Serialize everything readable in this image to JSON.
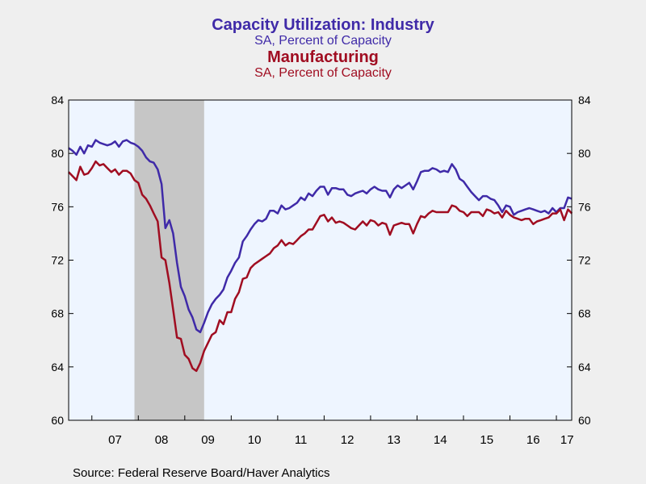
{
  "titles": {
    "line1": "Capacity Utilization: Industry",
    "line2": "SA, Percent of Capacity",
    "line3": "Manufacturing",
    "line4": "SA, Percent of Capacity"
  },
  "source": "Source:  Federal Reserve Board/Haver Analytics",
  "chart_data": {
    "type": "line",
    "title": "",
    "xlabel": "",
    "ylabel": "",
    "ylim": [
      60,
      84
    ],
    "yticks": [
      60,
      64,
      68,
      72,
      76,
      80,
      84
    ],
    "xlim": [
      2006.5,
      2017.33
    ],
    "xtick_labels": [
      "07",
      "08",
      "09",
      "10",
      "11",
      "12",
      "13",
      "14",
      "15",
      "16",
      "17"
    ],
    "xtick_centers": [
      2007.5,
      2008.5,
      2009.5,
      2010.5,
      2011.5,
      2012.5,
      2013.5,
      2014.5,
      2015.5,
      2016.5,
      2017.5
    ],
    "recession": [
      2007.917,
      2009.417
    ],
    "grid": false,
    "colors": {
      "industry": "#3f2aa8",
      "manufacturing": "#a00d21",
      "recession": "#c6c6c6",
      "plot_bg": "#eef5ff"
    },
    "series": [
      {
        "name": "Capacity Utilization: Industry",
        "key": "industry",
        "points": [
          [
            2006.5,
            80.4
          ],
          [
            2006.583,
            80.2
          ],
          [
            2006.667,
            79.9
          ],
          [
            2006.75,
            80.5
          ],
          [
            2006.833,
            80.0
          ],
          [
            2006.917,
            80.6
          ],
          [
            2007.0,
            80.5
          ],
          [
            2007.083,
            81.0
          ],
          [
            2007.167,
            80.8
          ],
          [
            2007.25,
            80.7
          ],
          [
            2007.333,
            80.6
          ],
          [
            2007.417,
            80.7
          ],
          [
            2007.5,
            80.9
          ],
          [
            2007.583,
            80.5
          ],
          [
            2007.667,
            80.9
          ],
          [
            2007.75,
            81.0
          ],
          [
            2007.833,
            80.8
          ],
          [
            2007.917,
            80.7
          ],
          [
            2008.0,
            80.5
          ],
          [
            2008.083,
            80.2
          ],
          [
            2008.167,
            79.7
          ],
          [
            2008.25,
            79.4
          ],
          [
            2008.333,
            79.3
          ],
          [
            2008.417,
            78.8
          ],
          [
            2008.5,
            77.7
          ],
          [
            2008.583,
            74.4
          ],
          [
            2008.667,
            75.0
          ],
          [
            2008.75,
            74.0
          ],
          [
            2008.833,
            71.8
          ],
          [
            2008.917,
            70.0
          ],
          [
            2009.0,
            69.3
          ],
          [
            2009.083,
            68.3
          ],
          [
            2009.167,
            67.7
          ],
          [
            2009.25,
            66.8
          ],
          [
            2009.333,
            66.6
          ],
          [
            2009.417,
            67.3
          ],
          [
            2009.5,
            68.1
          ],
          [
            2009.583,
            68.7
          ],
          [
            2009.667,
            69.1
          ],
          [
            2009.75,
            69.4
          ],
          [
            2009.833,
            69.8
          ],
          [
            2009.917,
            70.7
          ],
          [
            2010.0,
            71.2
          ],
          [
            2010.083,
            71.8
          ],
          [
            2010.167,
            72.2
          ],
          [
            2010.25,
            73.4
          ],
          [
            2010.333,
            73.8
          ],
          [
            2010.417,
            74.3
          ],
          [
            2010.5,
            74.7
          ],
          [
            2010.583,
            75.0
          ],
          [
            2010.667,
            74.9
          ],
          [
            2010.75,
            75.1
          ],
          [
            2010.833,
            75.7
          ],
          [
            2010.917,
            75.7
          ],
          [
            2011.0,
            75.5
          ],
          [
            2011.083,
            76.1
          ],
          [
            2011.167,
            75.8
          ],
          [
            2011.25,
            75.9
          ],
          [
            2011.333,
            76.1
          ],
          [
            2011.417,
            76.3
          ],
          [
            2011.5,
            76.7
          ],
          [
            2011.583,
            76.5
          ],
          [
            2011.667,
            77.0
          ],
          [
            2011.75,
            76.8
          ],
          [
            2011.833,
            77.2
          ],
          [
            2011.917,
            77.5
          ],
          [
            2012.0,
            77.5
          ],
          [
            2012.083,
            76.9
          ],
          [
            2012.167,
            77.4
          ],
          [
            2012.25,
            77.4
          ],
          [
            2012.333,
            77.3
          ],
          [
            2012.417,
            77.3
          ],
          [
            2012.5,
            76.9
          ],
          [
            2012.583,
            76.8
          ],
          [
            2012.667,
            77.0
          ],
          [
            2012.75,
            77.1
          ],
          [
            2012.833,
            77.2
          ],
          [
            2012.917,
            77.0
          ],
          [
            2013.0,
            77.3
          ],
          [
            2013.083,
            77.5
          ],
          [
            2013.167,
            77.3
          ],
          [
            2013.25,
            77.2
          ],
          [
            2013.333,
            77.2
          ],
          [
            2013.417,
            76.7
          ],
          [
            2013.5,
            77.3
          ],
          [
            2013.583,
            77.6
          ],
          [
            2013.667,
            77.4
          ],
          [
            2013.75,
            77.6
          ],
          [
            2013.833,
            77.8
          ],
          [
            2013.917,
            77.3
          ],
          [
            2014.0,
            77.9
          ],
          [
            2014.083,
            78.6
          ],
          [
            2014.167,
            78.7
          ],
          [
            2014.25,
            78.7
          ],
          [
            2014.333,
            78.9
          ],
          [
            2014.417,
            78.8
          ],
          [
            2014.5,
            78.6
          ],
          [
            2014.583,
            78.7
          ],
          [
            2014.667,
            78.6
          ],
          [
            2014.75,
            79.2
          ],
          [
            2014.833,
            78.8
          ],
          [
            2014.917,
            78.1
          ],
          [
            2015.0,
            77.9
          ],
          [
            2015.083,
            77.5
          ],
          [
            2015.167,
            77.1
          ],
          [
            2015.25,
            76.8
          ],
          [
            2015.333,
            76.5
          ],
          [
            2015.417,
            76.8
          ],
          [
            2015.5,
            76.8
          ],
          [
            2015.583,
            76.6
          ],
          [
            2015.667,
            76.5
          ],
          [
            2015.75,
            76.1
          ],
          [
            2015.833,
            75.6
          ],
          [
            2015.917,
            76.1
          ],
          [
            2016.0,
            76.0
          ],
          [
            2016.083,
            75.4
          ],
          [
            2016.167,
            75.6
          ],
          [
            2016.25,
            75.7
          ],
          [
            2016.333,
            75.8
          ],
          [
            2016.417,
            75.9
          ],
          [
            2016.5,
            75.8
          ],
          [
            2016.583,
            75.7
          ],
          [
            2016.667,
            75.6
          ],
          [
            2016.75,
            75.7
          ],
          [
            2016.833,
            75.5
          ],
          [
            2016.917,
            75.9
          ],
          [
            2017.0,
            75.6
          ],
          [
            2017.083,
            75.9
          ],
          [
            2017.167,
            75.9
          ],
          [
            2017.25,
            76.7
          ],
          [
            2017.333,
            76.6
          ]
        ]
      },
      {
        "name": "Manufacturing",
        "key": "manufacturing",
        "points": [
          [
            2006.5,
            78.6
          ],
          [
            2006.583,
            78.3
          ],
          [
            2006.667,
            78.0
          ],
          [
            2006.75,
            79.0
          ],
          [
            2006.833,
            78.4
          ],
          [
            2006.917,
            78.5
          ],
          [
            2007.0,
            78.9
          ],
          [
            2007.083,
            79.4
          ],
          [
            2007.167,
            79.1
          ],
          [
            2007.25,
            79.2
          ],
          [
            2007.333,
            78.9
          ],
          [
            2007.417,
            78.6
          ],
          [
            2007.5,
            78.8
          ],
          [
            2007.583,
            78.4
          ],
          [
            2007.667,
            78.7
          ],
          [
            2007.75,
            78.7
          ],
          [
            2007.833,
            78.5
          ],
          [
            2007.917,
            78.0
          ],
          [
            2008.0,
            77.8
          ],
          [
            2008.083,
            76.9
          ],
          [
            2008.167,
            76.6
          ],
          [
            2008.25,
            76.1
          ],
          [
            2008.333,
            75.5
          ],
          [
            2008.417,
            74.9
          ],
          [
            2008.5,
            72.2
          ],
          [
            2008.583,
            72.0
          ],
          [
            2008.667,
            70.3
          ],
          [
            2008.75,
            68.3
          ],
          [
            2008.833,
            66.2
          ],
          [
            2008.917,
            66.1
          ],
          [
            2009.0,
            64.9
          ],
          [
            2009.083,
            64.6
          ],
          [
            2009.167,
            63.9
          ],
          [
            2009.25,
            63.7
          ],
          [
            2009.333,
            64.3
          ],
          [
            2009.417,
            65.2
          ],
          [
            2009.5,
            65.8
          ],
          [
            2009.583,
            66.4
          ],
          [
            2009.667,
            66.6
          ],
          [
            2009.75,
            67.5
          ],
          [
            2009.833,
            67.2
          ],
          [
            2009.917,
            68.1
          ],
          [
            2010.0,
            68.1
          ],
          [
            2010.083,
            69.1
          ],
          [
            2010.167,
            69.6
          ],
          [
            2010.25,
            70.6
          ],
          [
            2010.333,
            70.7
          ],
          [
            2010.417,
            71.4
          ],
          [
            2010.5,
            71.7
          ],
          [
            2010.583,
            71.9
          ],
          [
            2010.667,
            72.1
          ],
          [
            2010.75,
            72.3
          ],
          [
            2010.833,
            72.5
          ],
          [
            2010.917,
            72.9
          ],
          [
            2011.0,
            73.1
          ],
          [
            2011.083,
            73.5
          ],
          [
            2011.167,
            73.1
          ],
          [
            2011.25,
            73.3
          ],
          [
            2011.333,
            73.2
          ],
          [
            2011.417,
            73.5
          ],
          [
            2011.5,
            73.8
          ],
          [
            2011.583,
            74.0
          ],
          [
            2011.667,
            74.3
          ],
          [
            2011.75,
            74.3
          ],
          [
            2011.833,
            74.8
          ],
          [
            2011.917,
            75.3
          ],
          [
            2012.0,
            75.4
          ],
          [
            2012.083,
            74.9
          ],
          [
            2012.167,
            75.2
          ],
          [
            2012.25,
            74.8
          ],
          [
            2012.333,
            74.9
          ],
          [
            2012.417,
            74.8
          ],
          [
            2012.5,
            74.6
          ],
          [
            2012.583,
            74.4
          ],
          [
            2012.667,
            74.3
          ],
          [
            2012.75,
            74.6
          ],
          [
            2012.833,
            74.9
          ],
          [
            2012.917,
            74.6
          ],
          [
            2013.0,
            75.0
          ],
          [
            2013.083,
            74.9
          ],
          [
            2013.167,
            74.6
          ],
          [
            2013.25,
            74.8
          ],
          [
            2013.333,
            74.7
          ],
          [
            2013.417,
            73.9
          ],
          [
            2013.5,
            74.6
          ],
          [
            2013.583,
            74.7
          ],
          [
            2013.667,
            74.8
          ],
          [
            2013.75,
            74.7
          ],
          [
            2013.833,
            74.7
          ],
          [
            2013.917,
            74.0
          ],
          [
            2014.0,
            74.7
          ],
          [
            2014.083,
            75.3
          ],
          [
            2014.167,
            75.2
          ],
          [
            2014.25,
            75.5
          ],
          [
            2014.333,
            75.7
          ],
          [
            2014.417,
            75.6
          ],
          [
            2014.5,
            75.6
          ],
          [
            2014.583,
            75.6
          ],
          [
            2014.667,
            75.6
          ],
          [
            2014.75,
            76.1
          ],
          [
            2014.833,
            76.0
          ],
          [
            2014.917,
            75.7
          ],
          [
            2015.0,
            75.6
          ],
          [
            2015.083,
            75.3
          ],
          [
            2015.167,
            75.6
          ],
          [
            2015.25,
            75.6
          ],
          [
            2015.333,
            75.6
          ],
          [
            2015.417,
            75.3
          ],
          [
            2015.5,
            75.8
          ],
          [
            2015.583,
            75.7
          ],
          [
            2015.667,
            75.5
          ],
          [
            2015.75,
            75.6
          ],
          [
            2015.833,
            75.2
          ],
          [
            2015.917,
            75.7
          ],
          [
            2016.0,
            75.4
          ],
          [
            2016.083,
            75.2
          ],
          [
            2016.167,
            75.1
          ],
          [
            2016.25,
            75.0
          ],
          [
            2016.333,
            75.1
          ],
          [
            2016.417,
            75.1
          ],
          [
            2016.5,
            74.7
          ],
          [
            2016.583,
            74.9
          ],
          [
            2016.667,
            75.0
          ],
          [
            2016.75,
            75.1
          ],
          [
            2016.833,
            75.2
          ],
          [
            2016.917,
            75.5
          ],
          [
            2017.0,
            75.5
          ],
          [
            2017.083,
            75.8
          ],
          [
            2017.167,
            75.0
          ],
          [
            2017.25,
            75.8
          ],
          [
            2017.333,
            75.5
          ]
        ]
      }
    ]
  }
}
